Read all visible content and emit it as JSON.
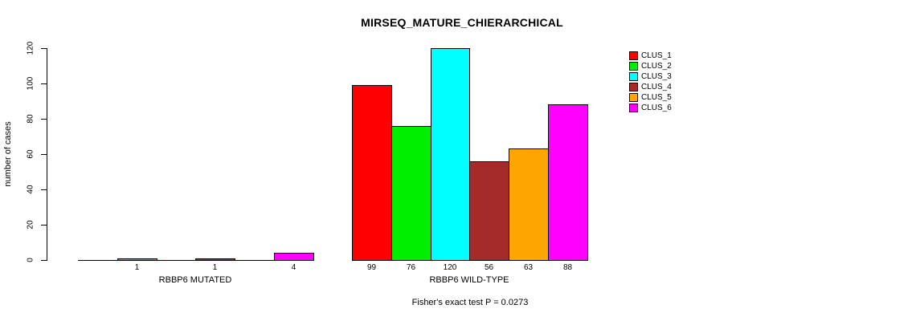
{
  "chart_data": {
    "type": "bar",
    "title": "MIRSEQ_MATURE_CHIERARCHICAL",
    "ylabel": "number of cases",
    "xlabel": "",
    "ylim": [
      0,
      120
    ],
    "yticks": [
      0,
      20,
      40,
      60,
      80,
      100,
      120
    ],
    "grid": false,
    "legend_position": "right-outside",
    "categories": [
      "RBBP6 MUTATED",
      "RBBP6 WILD-TYPE"
    ],
    "series": [
      {
        "name": "CLUS_1",
        "color": "#FF0000",
        "values": [
          0,
          99
        ]
      },
      {
        "name": "CLUS_2",
        "color": "#00EE00",
        "values": [
          1,
          76
        ]
      },
      {
        "name": "CLUS_3",
        "color": "#00FFFF",
        "values": [
          0,
          120
        ]
      },
      {
        "name": "CLUS_4",
        "color": "#A52A2A",
        "values": [
          1,
          56
        ]
      },
      {
        "name": "CLUS_5",
        "color": "#FFA500",
        "values": [
          0,
          63
        ]
      },
      {
        "name": "CLUS_6",
        "color": "#FF00FF",
        "values": [
          4,
          88
        ]
      }
    ],
    "bar_value_labels": [
      [
        "",
        "1",
        "",
        "1",
        "",
        "4"
      ],
      [
        "99",
        "76",
        "120",
        "56",
        "63",
        "88"
      ]
    ],
    "footnote": "Fisher's exact test P = 0.0273"
  }
}
